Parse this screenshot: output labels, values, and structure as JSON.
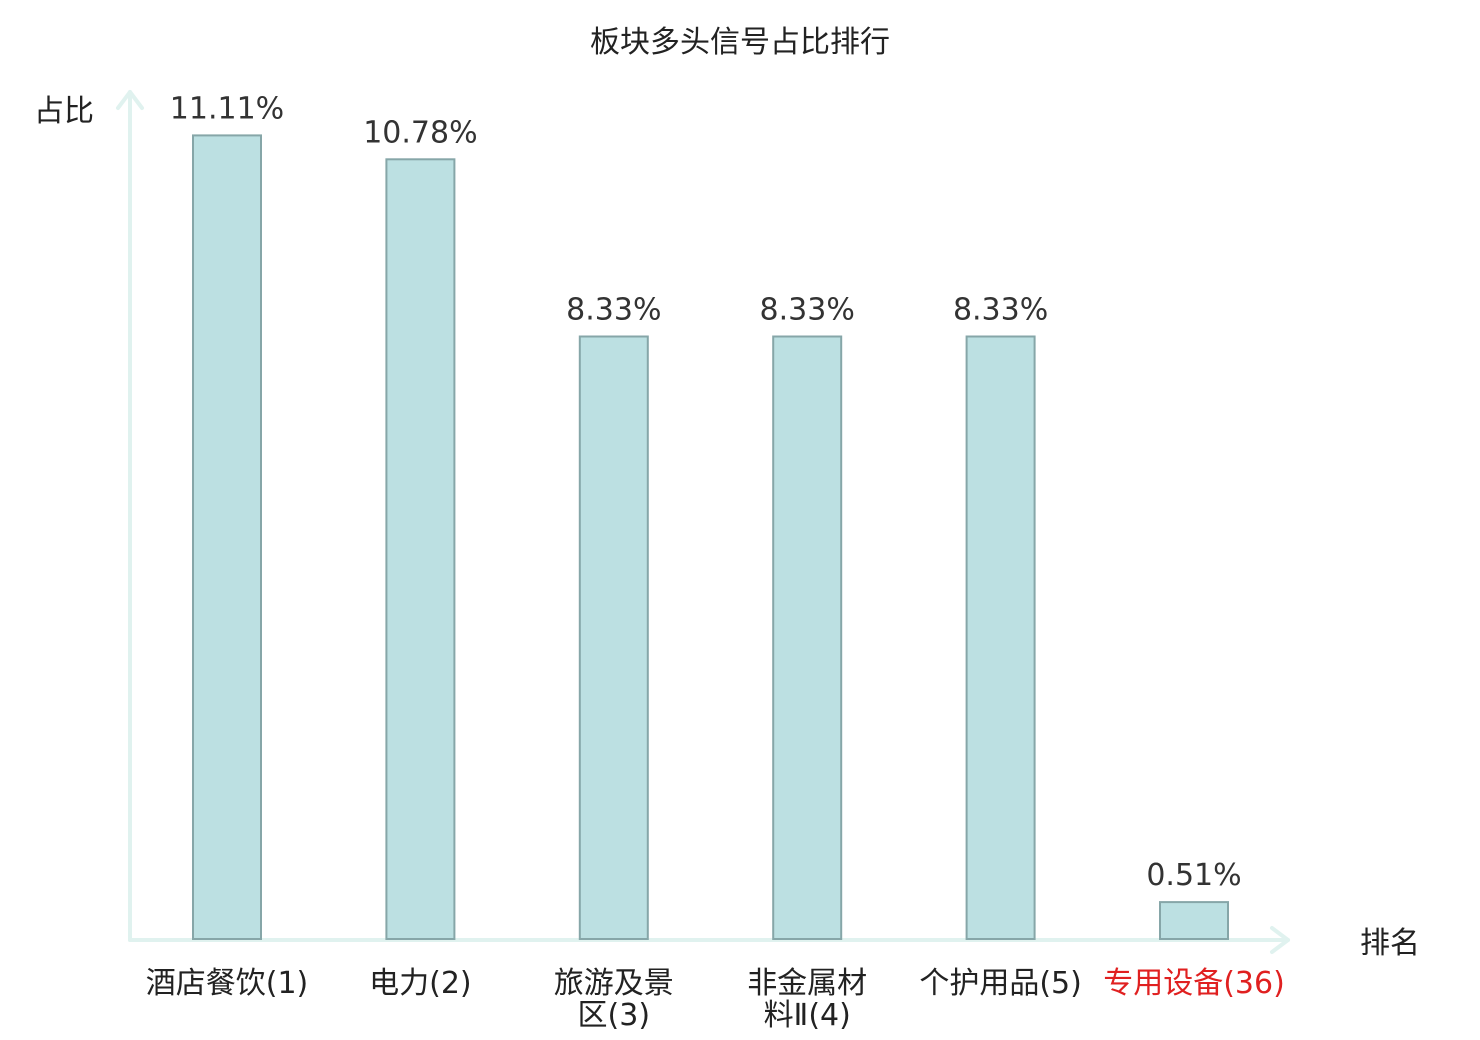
{
  "chart_data": {
    "type": "bar",
    "title": "板块多头信号占比排行",
    "ylabel": "占比",
    "xlabel": "排名",
    "categories": [
      [
        "酒店餐饮(1)"
      ],
      [
        "电力(2)"
      ],
      [
        "旅游及景",
        "区(3)"
      ],
      [
        "非金属材",
        "料Ⅱ(4)"
      ],
      [
        "个护用品(5)"
      ],
      [
        "专用设备(36)"
      ]
    ],
    "values": [
      11.11,
      10.78,
      8.33,
      8.33,
      8.33,
      0.51
    ],
    "value_labels": [
      "11.11%",
      "10.78%",
      "8.33%",
      "8.33%",
      "8.33%",
      "0.51%"
    ],
    "highlight_index": 5,
    "ylim": [
      0,
      11.6
    ],
    "grid": false,
    "colors": {
      "bar_fill": "#bce0e2",
      "bar_stroke": "#86a6a8",
      "axis": "#e0f2ef",
      "highlight_text": "#e02020"
    }
  }
}
